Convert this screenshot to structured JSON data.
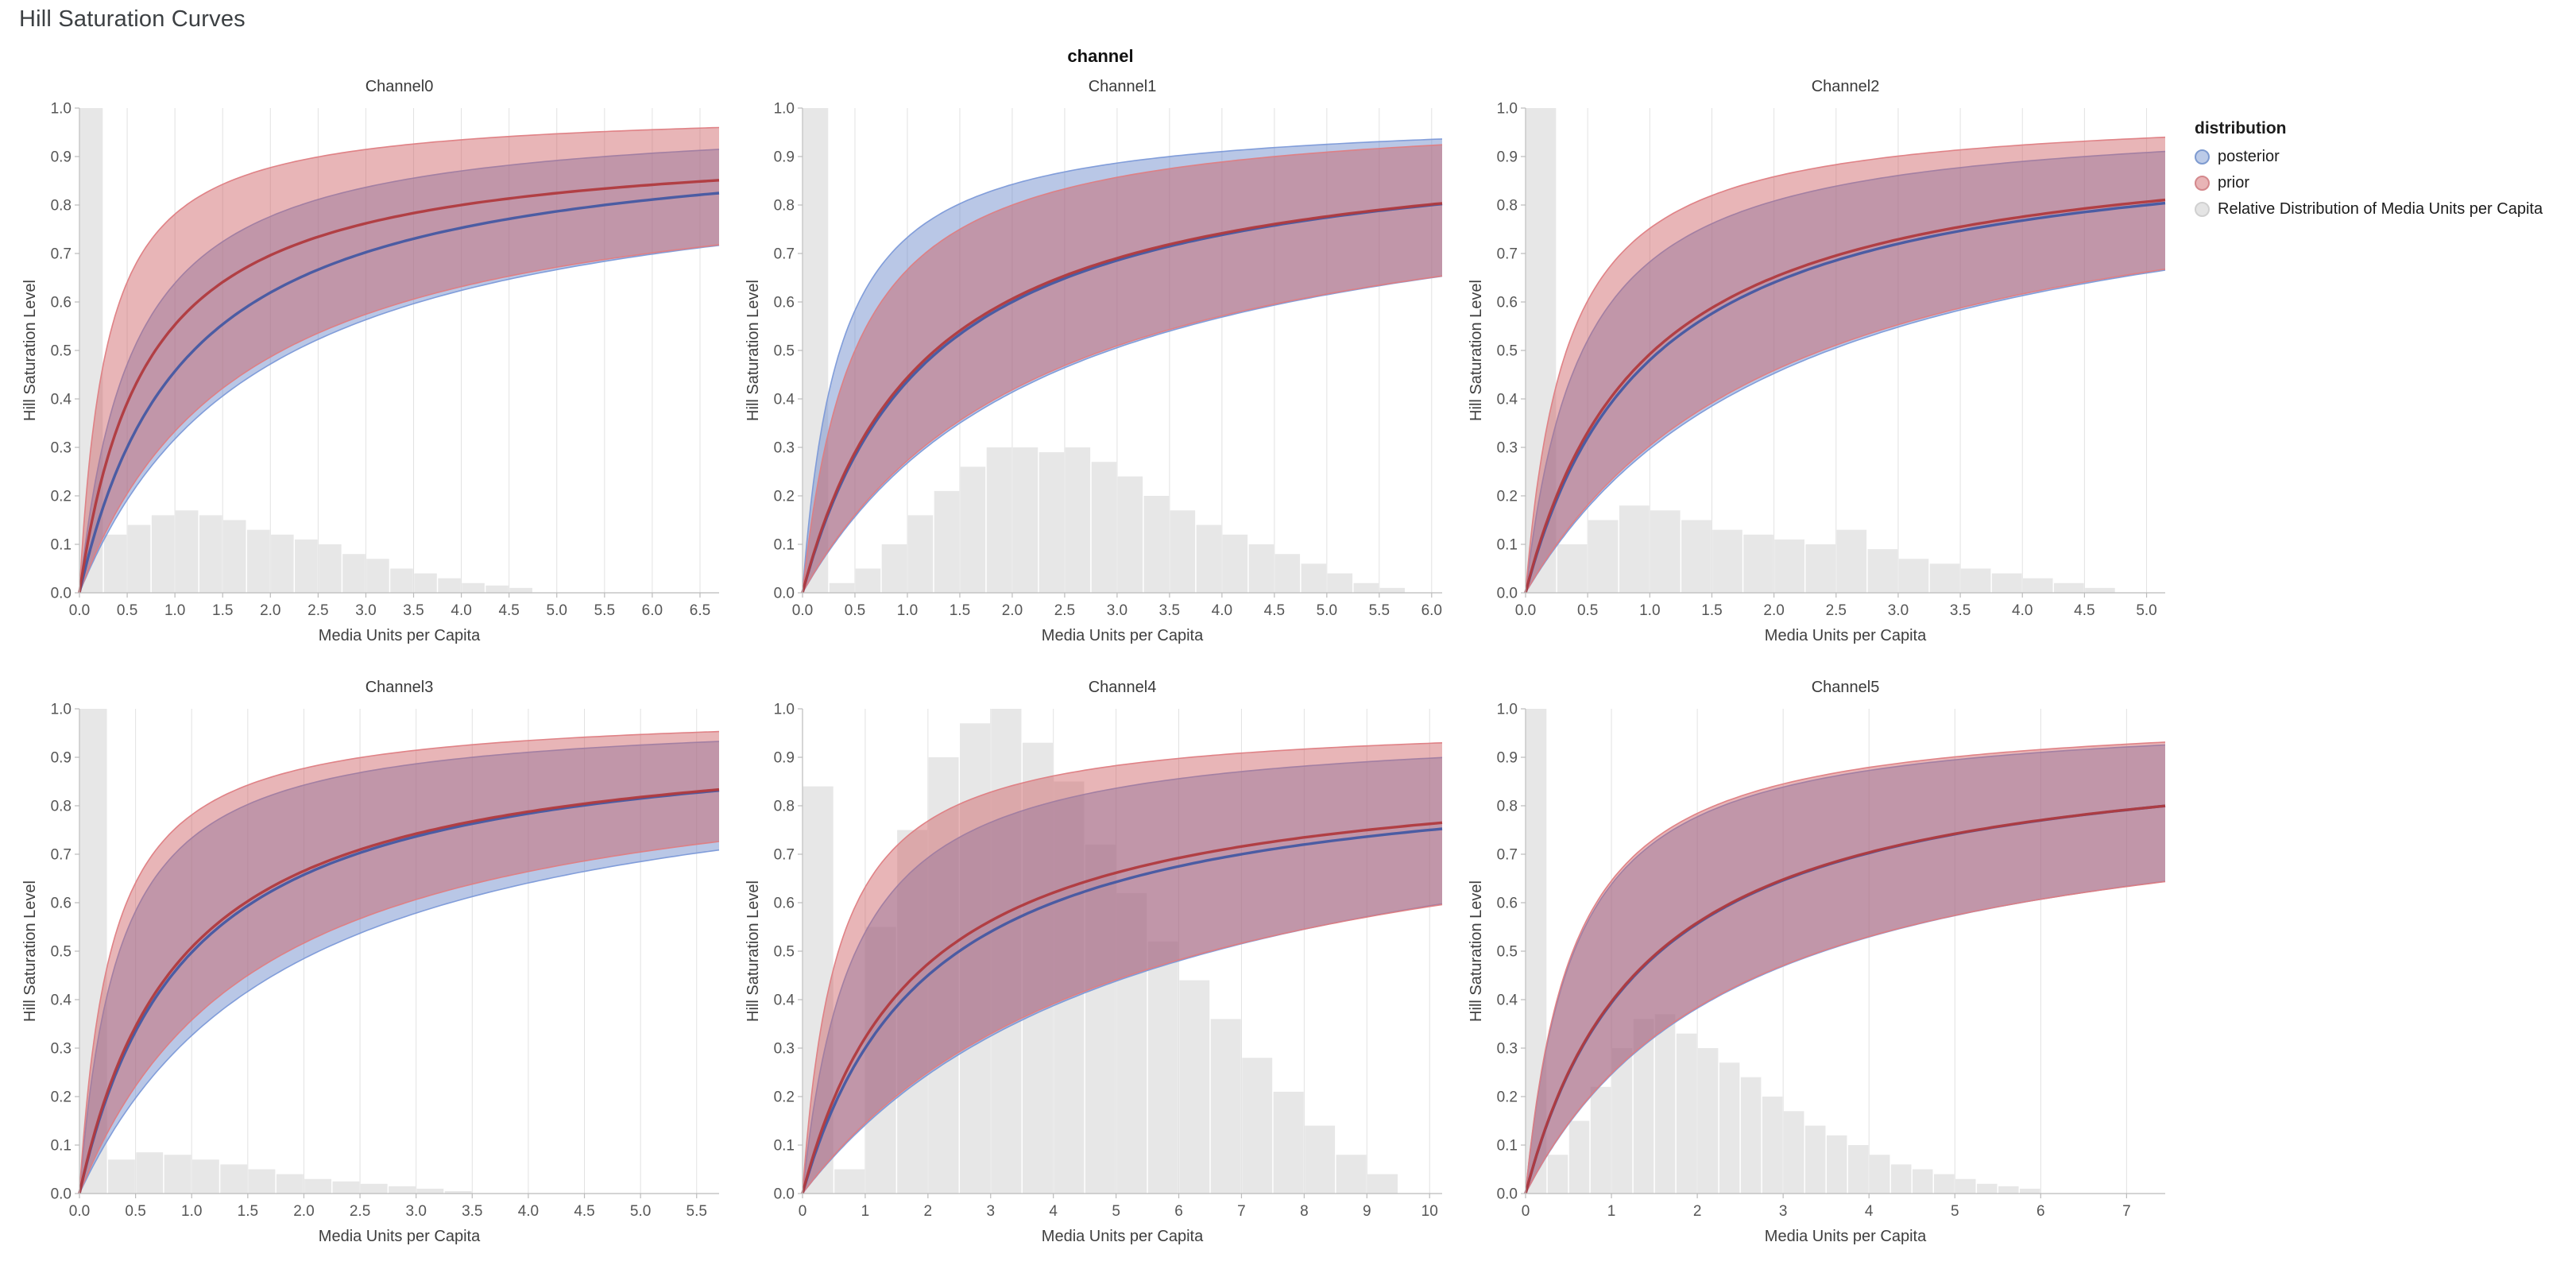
{
  "page": {
    "title": "Hill Saturation Curves"
  },
  "chart_data": {
    "type": "line",
    "title": "Hill Saturation Curves",
    "facet_header": "channel",
    "xlabel": "Media Units per Capita",
    "ylabel": "Hill Saturation Level",
    "ylim": [
      0,
      1
    ],
    "y_ticks": [
      "0.0",
      "0.1",
      "0.2",
      "0.3",
      "0.4",
      "0.5",
      "0.6",
      "0.7",
      "0.8",
      "0.9",
      "1.0"
    ],
    "grid": "vertical-only",
    "curve_model": "y = A*x/(x+k); median/upper/lower give the posterior and prior median curves and credible-band edges; hist gives the relative distribution of media units per capita (heights on the 0-1 y scale)",
    "legend": {
      "title": "distribution",
      "position": "top-right",
      "entries": [
        {
          "label": "posterior",
          "fill": "#bccbe8",
          "stroke": "#7e9bd0"
        },
        {
          "label": "prior",
          "fill": "#e8b4b6",
          "stroke": "#d4888c"
        },
        {
          "label": "Relative Distribution of Media Units per Capita",
          "fill": "#e4e4e4",
          "stroke": "#d0d0d0"
        }
      ]
    },
    "colors": {
      "posterior_line": "#4558a2",
      "posterior_band": "rgba(100,130,200,0.45)",
      "posterior_edge": "rgba(120,150,215,0.9)",
      "prior_line": "#b03a3e",
      "prior_band": "rgba(205,90,95,0.45)",
      "prior_edge": "rgba(222,125,130,0.95)",
      "histogram": "rgba(120,120,120,0.18)",
      "gridline": "#e2e2e2",
      "axis": "#bbbbbb",
      "tick_label": "#565656",
      "axis_title": "#3f3f3f"
    },
    "facets": [
      {
        "name": "Channel0",
        "x_domain": 6.7,
        "x_ticks": [
          "0.0",
          "0.5",
          "1.0",
          "1.5",
          "2.0",
          "2.5",
          "3.0",
          "3.5",
          "4.0",
          "4.5",
          "5.0",
          "5.5",
          "6.0",
          "6.5"
        ],
        "posterior": {
          "median": {
            "A": 0.96,
            "k": 1.1
          },
          "upper": {
            "A": 0.99,
            "k": 0.55
          },
          "lower": {
            "A": 0.92,
            "k": 1.9
          }
        },
        "prior": {
          "median": {
            "A": 0.94,
            "k": 0.7
          },
          "upper": {
            "A": 1.0,
            "k": 0.28
          },
          "lower": {
            "A": 0.9,
            "k": 1.7
          }
        },
        "hist": {
          "start": 0,
          "bin_width": 0.25,
          "heights": [
            1.0,
            0.12,
            0.14,
            0.16,
            0.17,
            0.16,
            0.15,
            0.13,
            0.12,
            0.11,
            0.1,
            0.08,
            0.07,
            0.05,
            0.04,
            0.03,
            0.02,
            0.015,
            0.01
          ]
        }
      },
      {
        "name": "Channel1",
        "x_domain": 6.1,
        "x_ticks": [
          "0.0",
          "0.5",
          "1.0",
          "1.5",
          "2.0",
          "2.5",
          "3.0",
          "3.5",
          "4.0",
          "4.5",
          "5.0",
          "5.5",
          "6.0"
        ],
        "posterior": {
          "median": {
            "A": 0.96,
            "k": 1.2
          },
          "upper": {
            "A": 0.99,
            "k": 0.35
          },
          "lower": {
            "A": 0.91,
            "k": 2.4
          }
        },
        "prior": {
          "median": {
            "A": 0.955,
            "k": 1.15
          },
          "upper": {
            "A": 1.0,
            "k": 0.5
          },
          "lower": {
            "A": 0.9,
            "k": 2.3
          }
        },
        "hist": {
          "start": 0,
          "bin_width": 0.25,
          "heights": [
            1.0,
            0.02,
            0.05,
            0.1,
            0.16,
            0.21,
            0.26,
            0.3,
            0.3,
            0.29,
            0.3,
            0.27,
            0.24,
            0.2,
            0.17,
            0.14,
            0.12,
            0.1,
            0.08,
            0.06,
            0.04,
            0.02,
            0.01
          ]
        }
      },
      {
        "name": "Channel2",
        "x_domain": 5.15,
        "x_ticks": [
          "0.0",
          "0.5",
          "1.0",
          "1.5",
          "2.0",
          "2.5",
          "3.0",
          "3.5",
          "4.0",
          "4.5",
          "5.0"
        ],
        "posterior": {
          "median": {
            "A": 0.96,
            "k": 1.0
          },
          "upper": {
            "A": 0.99,
            "k": 0.45
          },
          "lower": {
            "A": 0.95,
            "k": 2.2
          }
        },
        "prior": {
          "median": {
            "A": 0.96,
            "k": 0.95
          },
          "upper": {
            "A": 1.0,
            "k": 0.33
          },
          "lower": {
            "A": 0.94,
            "k": 2.1
          }
        },
        "hist": {
          "start": 0,
          "bin_width": 0.25,
          "heights": [
            1.0,
            0.1,
            0.15,
            0.18,
            0.17,
            0.15,
            0.13,
            0.12,
            0.11,
            0.1,
            0.13,
            0.09,
            0.07,
            0.06,
            0.05,
            0.04,
            0.03,
            0.02,
            0.01
          ]
        }
      },
      {
        "name": "Channel3",
        "x_domain": 5.7,
        "x_ticks": [
          "0.0",
          "0.5",
          "1.0",
          "1.5",
          "2.0",
          "2.5",
          "3.0",
          "3.5",
          "4.0",
          "4.5",
          "5.0",
          "5.5"
        ],
        "posterior": {
          "median": {
            "A": 0.97,
            "k": 0.95
          },
          "upper": {
            "A": 0.99,
            "k": 0.35
          },
          "lower": {
            "A": 0.945,
            "k": 1.9
          }
        },
        "prior": {
          "median": {
            "A": 0.965,
            "k": 0.9
          },
          "upper": {
            "A": 1.0,
            "k": 0.28
          },
          "lower": {
            "A": 0.93,
            "k": 1.6
          }
        },
        "hist": {
          "start": 0,
          "bin_width": 0.25,
          "heights": [
            1.0,
            0.07,
            0.085,
            0.08,
            0.07,
            0.06,
            0.05,
            0.04,
            0.03,
            0.025,
            0.02,
            0.015,
            0.01,
            0.005
          ]
        }
      },
      {
        "name": "Channel4",
        "x_domain": 10.2,
        "x_ticks": [
          "0",
          "1",
          "2",
          "3",
          "4",
          "5",
          "6",
          "7",
          "8",
          "9",
          "10"
        ],
        "posterior": {
          "median": {
            "A": 0.9,
            "k": 2.0
          },
          "upper": {
            "A": 0.97,
            "k": 0.8
          },
          "lower": {
            "A": 0.92,
            "k": 5.5
          }
        },
        "prior": {
          "median": {
            "A": 0.9,
            "k": 1.8
          },
          "upper": {
            "A": 0.98,
            "k": 0.55
          },
          "lower": {
            "A": 0.9,
            "k": 5.2
          }
        },
        "hist": {
          "start": 0,
          "bin_width": 0.5,
          "heights": [
            0.84,
            0.05,
            0.55,
            0.75,
            0.9,
            0.97,
            1.0,
            0.93,
            0.85,
            0.72,
            0.62,
            0.52,
            0.44,
            0.36,
            0.28,
            0.21,
            0.14,
            0.08,
            0.04
          ]
        }
      },
      {
        "name": "Channel5",
        "x_domain": 7.45,
        "x_ticks": [
          "0",
          "1",
          "2",
          "3",
          "4",
          "5",
          "6",
          "7"
        ],
        "posterior": {
          "median": {
            "A": 0.952,
            "k": 1.42
          },
          "upper": {
            "A": 0.995,
            "k": 0.56
          },
          "lower": {
            "A": 0.86,
            "k": 2.5
          }
        },
        "prior": {
          "median": {
            "A": 0.95,
            "k": 1.4
          },
          "upper": {
            "A": 1.0,
            "k": 0.55
          },
          "lower": {
            "A": 0.855,
            "k": 2.45
          }
        },
        "hist": {
          "start": 0,
          "bin_width": 0.25,
          "heights": [
            1.0,
            0.08,
            0.15,
            0.22,
            0.3,
            0.36,
            0.37,
            0.33,
            0.3,
            0.27,
            0.24,
            0.2,
            0.17,
            0.14,
            0.12,
            0.1,
            0.08,
            0.06,
            0.05,
            0.04,
            0.03,
            0.02,
            0.015,
            0.01
          ]
        }
      }
    ]
  }
}
